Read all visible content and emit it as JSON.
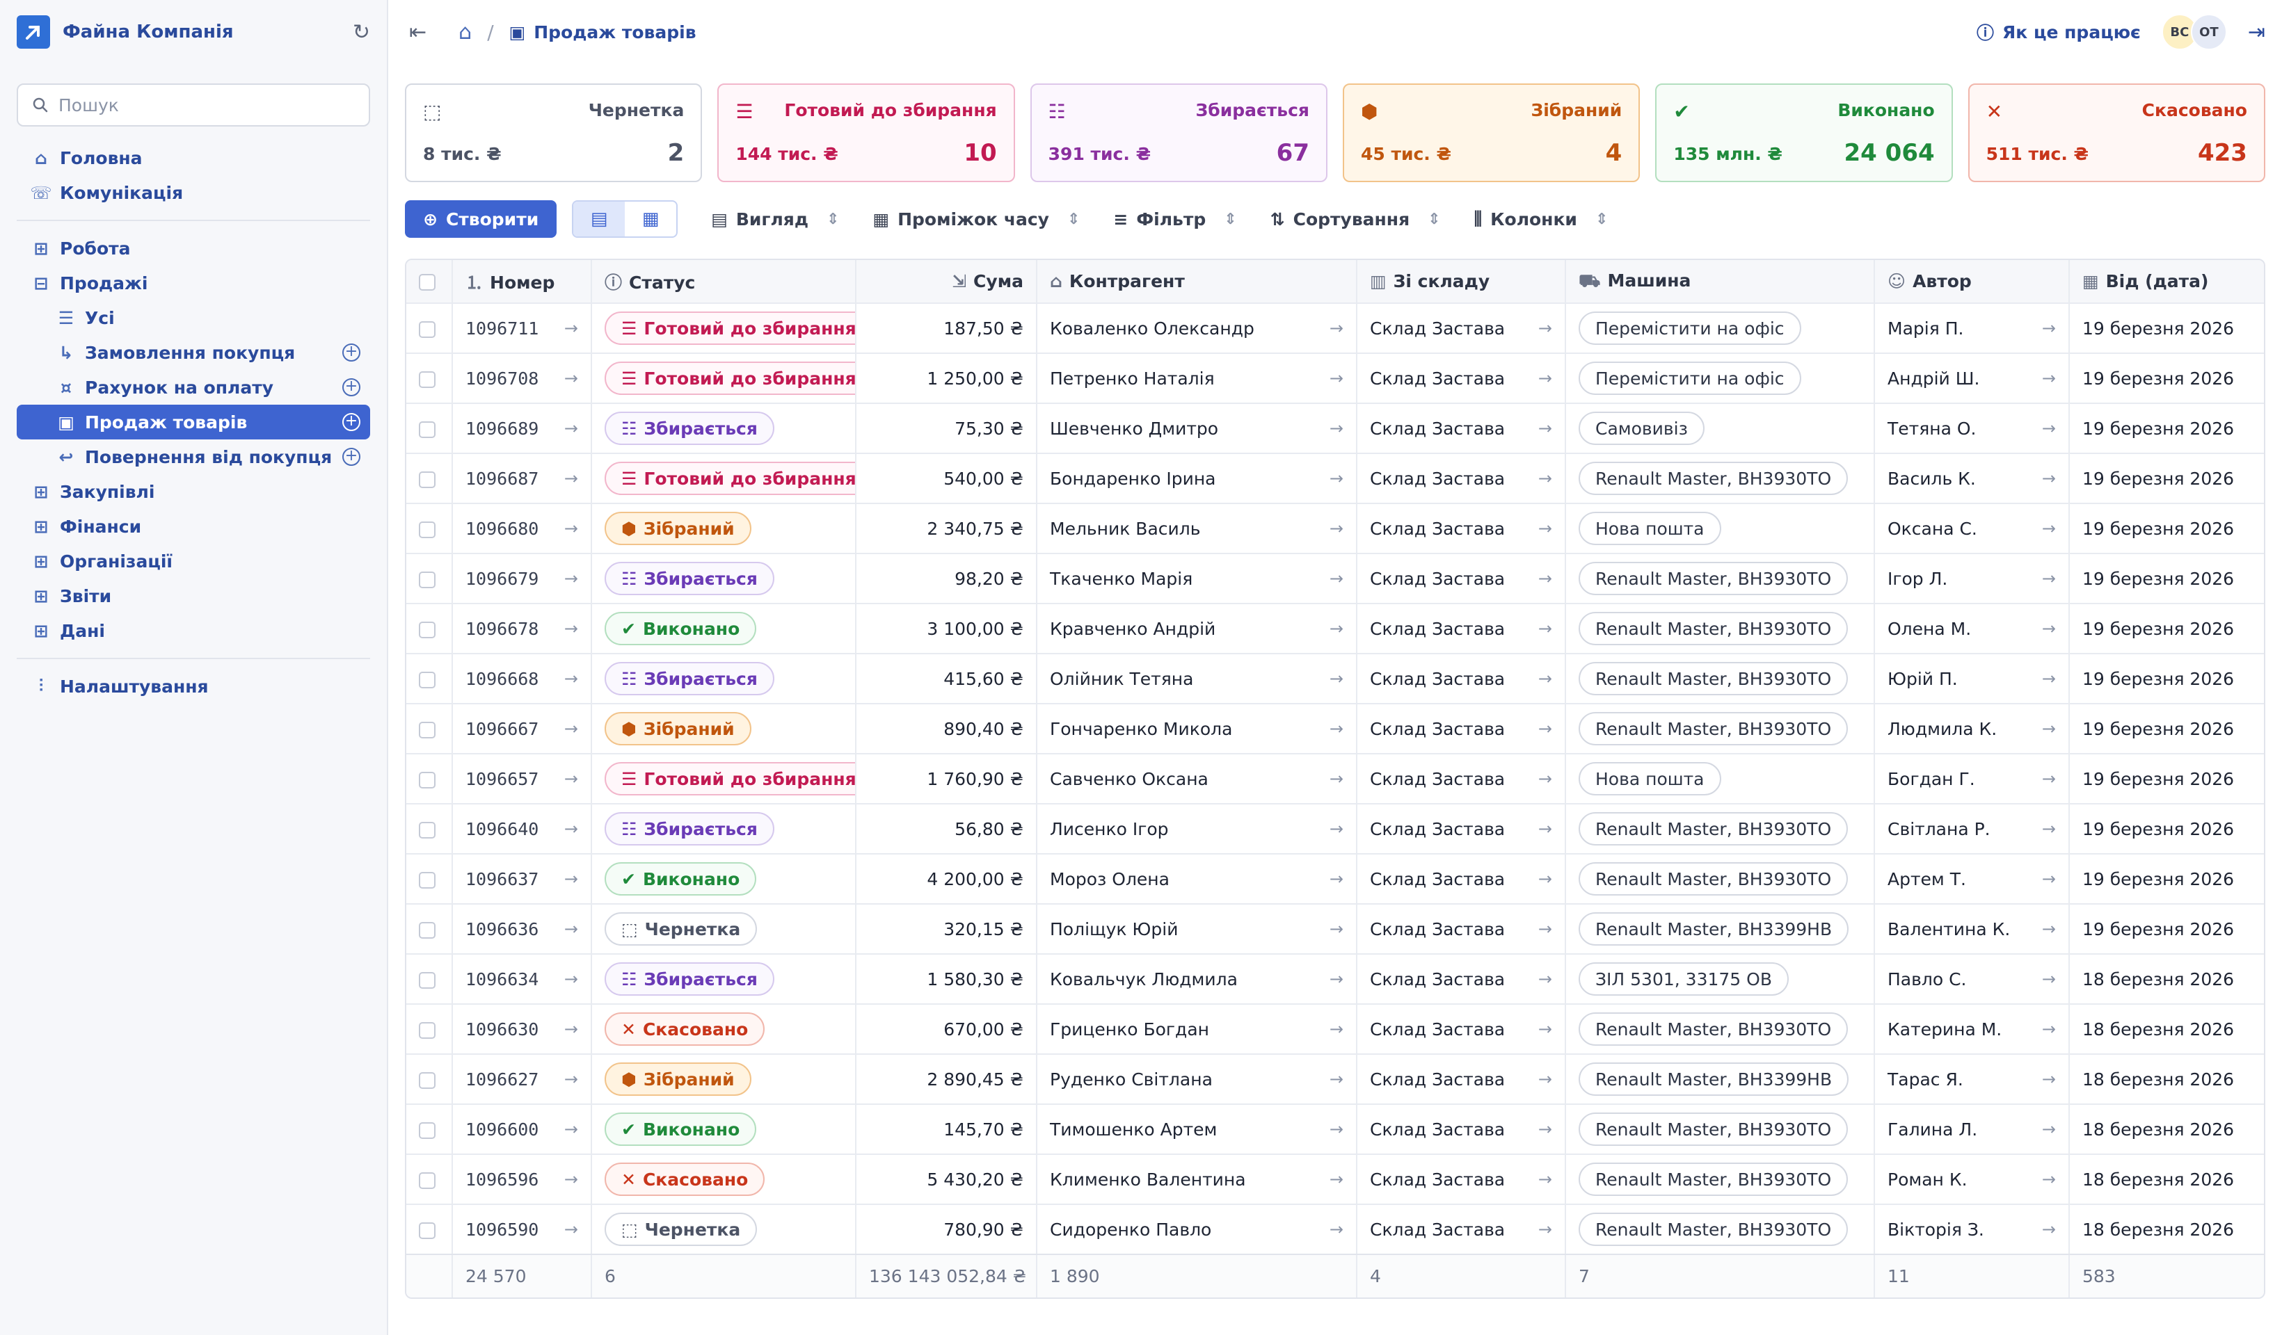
{
  "sidebar": {
    "company": "Файна Компанія",
    "search_placeholder": "Пошук",
    "main_items": [
      {
        "label": "Головна",
        "icon": "home-icon"
      },
      {
        "label": "Комунікація",
        "icon": "chat-icon"
      }
    ],
    "sections": [
      {
        "label": "Робота"
      },
      {
        "label": "Продажі",
        "expanded": true
      },
      {
        "label": "Закупівлі"
      },
      {
        "label": "Фінанси"
      },
      {
        "label": "Організації"
      },
      {
        "label": "Звіти"
      },
      {
        "label": "Дані"
      }
    ],
    "sales_sub": [
      {
        "label": "Усі",
        "plus": false,
        "active": false
      },
      {
        "label": "Замовлення покупця",
        "plus": true,
        "active": false
      },
      {
        "label": "Рахунок на оплату",
        "plus": true,
        "active": false
      },
      {
        "label": "Продаж товарів",
        "plus": true,
        "active": true
      },
      {
        "label": "Повернення від покупця",
        "plus": true,
        "active": false
      }
    ],
    "settings": "Налаштування"
  },
  "topbar": {
    "breadcrumb": "Продаж товарів",
    "how": "Як це працює",
    "avatars": [
      "ВС",
      "ОТ"
    ]
  },
  "cards": [
    {
      "title": "Чернетка",
      "sum": "8 тис. ₴",
      "count": "2",
      "color": "#4c5365",
      "border": "#d4d8e1",
      "bg": "#ffffff",
      "icon": "draft-icon"
    },
    {
      "title": "Готовий до збирання",
      "sum": "144 тис. ₴",
      "count": "10",
      "color": "#c21a52",
      "border": "#f2b6cb",
      "bg": "#fff7fa",
      "icon": "list-icon"
    },
    {
      "title": "Збирається",
      "sum": "391 тис. ₴",
      "count": "67",
      "color": "#8a2f9e",
      "border": "#ddc7ea",
      "bg": "#fcf7fe",
      "icon": "checklist-icon"
    },
    {
      "title": "Зібраний",
      "sum": "45 тис. ₴",
      "count": "4",
      "color": "#c0560e",
      "border": "#f2c38a",
      "bg": "#fff6e8",
      "icon": "box-icon"
    },
    {
      "title": "Виконано",
      "sum": "135 млн. ₴",
      "count": "24 064",
      "color": "#1f8a3b",
      "border": "#b3dfbf",
      "bg": "#f7fcf8",
      "icon": "check-circle-icon"
    },
    {
      "title": "Скасовано",
      "sum": "511 тис. ₴",
      "count": "423",
      "color": "#c8351a",
      "border": "#f1b6ab",
      "bg": "#fff7f5",
      "icon": "x-circle-icon"
    }
  ],
  "toolbar": {
    "create": "Створити",
    "view": "Вигляд",
    "period": "Проміжок часу",
    "filter": "Фільтр",
    "sort": "Сортування",
    "columns": "Колонки"
  },
  "table": {
    "columns": [
      "Номер",
      "Статус",
      "Сума",
      "Контрагент",
      "Зі складу",
      "Машина",
      "Автор",
      "Від (дата)"
    ],
    "rows": [
      {
        "num": "1096711",
        "status": "Готовий до збирання",
        "st": "ready",
        "sum": "187,50 ₴",
        "client": "Коваленко Олександр",
        "wh": "Склад Застава",
        "car": "Перемістити на офіс",
        "author": "Марія П.",
        "date": "19 березня 2026"
      },
      {
        "num": "1096708",
        "status": "Готовий до збирання",
        "st": "ready",
        "sum": "1 250,00 ₴",
        "client": "Петренко Наталія",
        "wh": "Склад Застава",
        "car": "Перемістити на офіс",
        "author": "Андрій Ш.",
        "date": "19 березня 2026"
      },
      {
        "num": "1096689",
        "status": "Збирається",
        "st": "collecting",
        "sum": "75,30 ₴",
        "client": "Шевченко Дмитро",
        "wh": "Склад Застава",
        "car": "Самовивіз",
        "author": "Тетяна О.",
        "date": "19 березня 2026"
      },
      {
        "num": "1096687",
        "status": "Готовий до збирання",
        "st": "ready",
        "sum": "540,00 ₴",
        "client": "Бондаренко Ірина",
        "wh": "Склад Застава",
        "car": "Renault Master, ВН3930ТО",
        "author": "Василь К.",
        "date": "19 березня 2026"
      },
      {
        "num": "1096680",
        "status": "Зібраний",
        "st": "collected",
        "sum": "2 340,75 ₴",
        "client": "Мельник Василь",
        "wh": "Склад Застава",
        "car": "Нова пошта",
        "author": "Оксана С.",
        "date": "19 березня 2026"
      },
      {
        "num": "1096679",
        "status": "Збирається",
        "st": "collecting",
        "sum": "98,20 ₴",
        "client": "Ткаченко Марія",
        "wh": "Склад Застава",
        "car": "Renault Master, ВН3930ТО",
        "author": "Ігор Л.",
        "date": "19 березня 2026"
      },
      {
        "num": "1096678",
        "status": "Виконано",
        "st": "done",
        "sum": "3 100,00 ₴",
        "client": "Кравченко Андрій",
        "wh": "Склад Застава",
        "car": "Renault Master, ВН3930ТО",
        "author": "Олена М.",
        "date": "19 березня 2026"
      },
      {
        "num": "1096668",
        "status": "Збирається",
        "st": "collecting",
        "sum": "415,60 ₴",
        "client": "Олійник Тетяна",
        "wh": "Склад Застава",
        "car": "Renault Master, ВН3930ТО",
        "author": "Юрій П.",
        "date": "19 березня 2026"
      },
      {
        "num": "1096667",
        "status": "Зібраний",
        "st": "collected",
        "sum": "890,40 ₴",
        "client": "Гончаренко Микола",
        "wh": "Склад Застава",
        "car": "Renault Master, ВН3930ТО",
        "author": "Людмила К.",
        "date": "19 березня 2026"
      },
      {
        "num": "1096657",
        "status": "Готовий до збирання",
        "st": "ready",
        "sum": "1 760,90 ₴",
        "client": "Савченко Оксана",
        "wh": "Склад Застава",
        "car": "Нова пошта",
        "author": "Богдан Г.",
        "date": "19 березня 2026"
      },
      {
        "num": "1096640",
        "status": "Збирається",
        "st": "collecting",
        "sum": "56,80 ₴",
        "client": "Лисенко Ігор",
        "wh": "Склад Застава",
        "car": "Renault Master, ВН3930ТО",
        "author": "Світлана Р.",
        "date": "19 березня 2026"
      },
      {
        "num": "1096637",
        "status": "Виконано",
        "st": "done",
        "sum": "4 200,00 ₴",
        "client": "Мороз Олена",
        "wh": "Склад Застава",
        "car": "Renault Master, ВН3930ТО",
        "author": "Артем Т.",
        "date": "19 березня 2026"
      },
      {
        "num": "1096636",
        "status": "Чернетка",
        "st": "draft",
        "sum": "320,15 ₴",
        "client": "Поліщук Юрій",
        "wh": "Склад Застава",
        "car": "Renault Master, ВН3399НВ",
        "author": "Валентина К.",
        "date": "19 березня 2026"
      },
      {
        "num": "1096634",
        "status": "Збирається",
        "st": "collecting",
        "sum": "1 580,30 ₴",
        "client": "Ковальчук Людмила",
        "wh": "Склад Застава",
        "car": "ЗІЛ 5301, 33175 ОВ",
        "author": "Павло С.",
        "date": "18 березня 2026"
      },
      {
        "num": "1096630",
        "status": "Скасовано",
        "st": "cancel",
        "sum": "670,00 ₴",
        "client": "Гриценко Богдан",
        "wh": "Склад Застава",
        "car": "Renault Master, ВН3930ТО",
        "author": "Катерина М.",
        "date": "18 березня 2026"
      },
      {
        "num": "1096627",
        "status": "Зібраний",
        "st": "collected",
        "sum": "2 890,45 ₴",
        "client": "Руденко Світлана",
        "wh": "Склад Застава",
        "car": "Renault Master, ВН3399НВ",
        "author": "Тарас Я.",
        "date": "18 березня 2026"
      },
      {
        "num": "1096600",
        "status": "Виконано",
        "st": "done",
        "sum": "145,70 ₴",
        "client": "Тимошенко Артем",
        "wh": "Склад Застава",
        "car": "Renault Master, ВН3930ТО",
        "author": "Галина Л.",
        "date": "18 березня 2026"
      },
      {
        "num": "1096596",
        "status": "Скасовано",
        "st": "cancel",
        "sum": "5 430,20 ₴",
        "client": "Клименко Валентина",
        "wh": "Склад Застава",
        "car": "Renault Master, ВН3930ТО",
        "author": "Роман К.",
        "date": "18 березня 2026"
      },
      {
        "num": "1096590",
        "status": "Чернетка",
        "st": "draft",
        "sum": "780,90 ₴",
        "client": "Сидоренко Павло",
        "wh": "Склад Застава",
        "car": "Renault Master, ВН3930ТО",
        "author": "Вікторія З.",
        "date": "18 березня 2026"
      }
    ],
    "footer": [
      "24 570",
      "6",
      "136 143 052,84 ₴",
      "1 890",
      "4",
      "7",
      "11",
      "583"
    ]
  }
}
